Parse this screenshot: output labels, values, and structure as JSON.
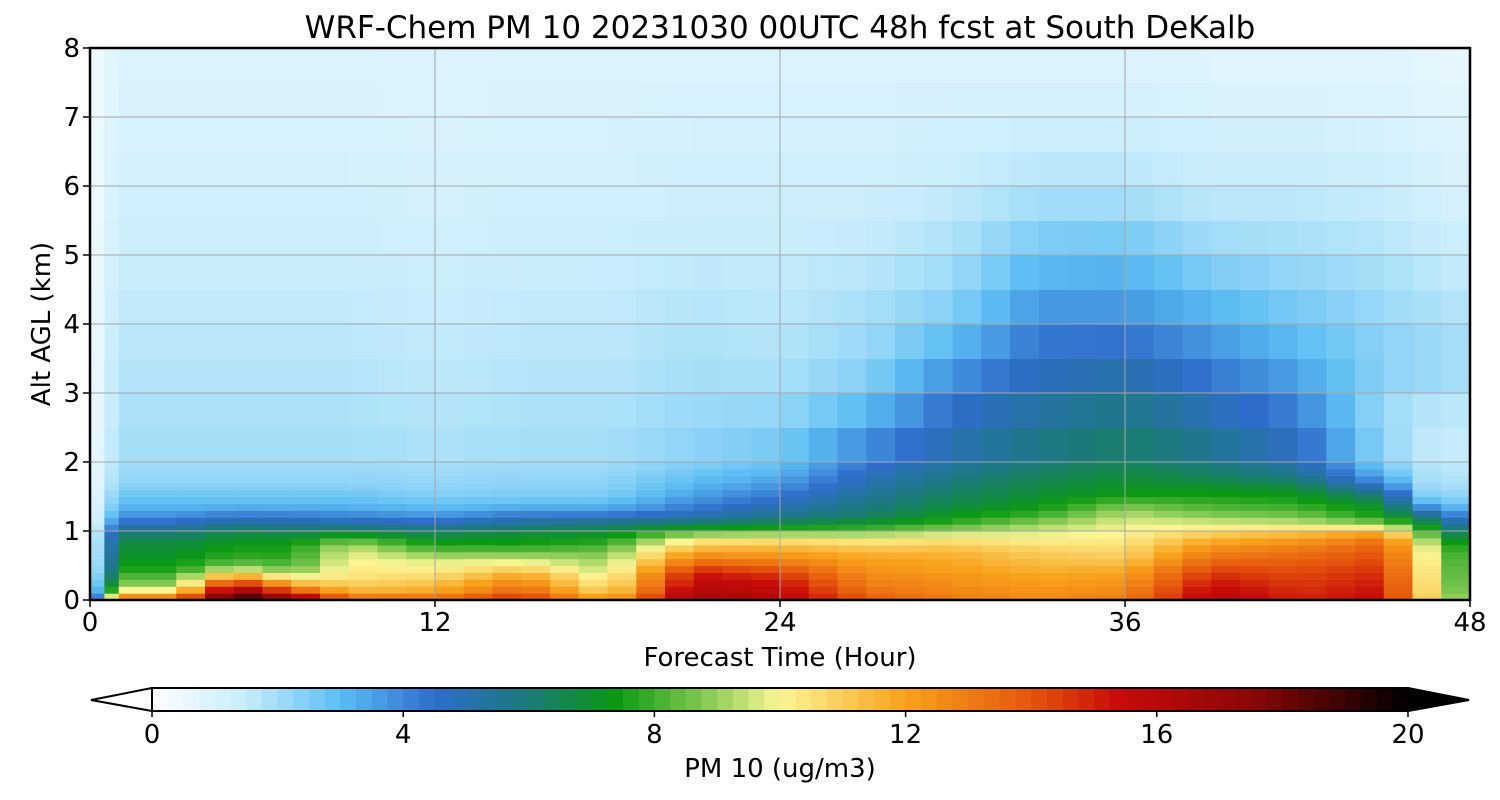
{
  "chart_data": {
    "type": "heatmap",
    "title": "WRF-Chem PM 10  20231030 00UTC 48h fcst at South DeKalb",
    "xlabel": "Forecast Time (Hour)",
    "ylabel": "Alt AGL (km)",
    "xlim": [
      0,
      48
    ],
    "ylim": [
      0,
      8
    ],
    "xticks": [
      0,
      12,
      24,
      36,
      48
    ],
    "yticks": [
      0,
      1,
      2,
      3,
      4,
      5,
      6,
      7,
      8
    ],
    "grid": true,
    "colorbar": {
      "label": "PM 10  (ug/m3)",
      "min": 0,
      "max": 20,
      "ticks": [
        0,
        4,
        8,
        12,
        16,
        20
      ],
      "extend": "both",
      "orientation": "horizontal",
      "placement": "bottom",
      "color_stops": [
        [
          0,
          "#ffffff"
        ],
        [
          1.5,
          "#c6ecfb"
        ],
        [
          3,
          "#5bbdf2"
        ],
        [
          4.5,
          "#2f6dcc"
        ],
        [
          6,
          "#1b7a78"
        ],
        [
          7.4,
          "#0b9a12"
        ],
        [
          9,
          "#96d05e"
        ],
        [
          10,
          "#fcf696"
        ],
        [
          12,
          "#f8a21c"
        ],
        [
          14,
          "#e5560c"
        ],
        [
          15.4,
          "#c80a0a"
        ],
        [
          17.5,
          "#8b0808"
        ],
        [
          20,
          "#000000"
        ]
      ]
    },
    "z_axis_heights_km": [
      0,
      0.1,
      0.2,
      0.3,
      0.4,
      0.5,
      0.6,
      0.7,
      0.8,
      0.9,
      1.0,
      1.1,
      1.2,
      1.3,
      1.4,
      1.5,
      1.6,
      1.7,
      1.8,
      1.9,
      2.0,
      2.5,
      3.0,
      3.5,
      4.0,
      4.5,
      5.0,
      5.5,
      6.0,
      6.5,
      7.0,
      7.5,
      8.0
    ],
    "x_hours": [
      0,
      0.5,
      1,
      2,
      3,
      4,
      5,
      6,
      7,
      8,
      9,
      10,
      11,
      12,
      13,
      14,
      15,
      16,
      17,
      18,
      19,
      20,
      21,
      22,
      23,
      24,
      25,
      26,
      27,
      28,
      29,
      30,
      31,
      32,
      33,
      34,
      35,
      36,
      37,
      38,
      39,
      40,
      41,
      42,
      43,
      44,
      45,
      46,
      47,
      48
    ],
    "profiles": [
      {
        "hour": 0,
        "values": [
          1.5,
          1.0,
          0.8,
          0.6,
          0.5,
          0.4,
          0.3,
          0.3,
          0.3,
          0.3,
          0.3,
          0.3,
          0.3,
          0.3,
          0.3,
          0.3,
          0.3,
          0.3,
          0.3,
          0.3,
          0.3,
          0.3,
          0.3,
          0.3,
          0.3,
          0.3,
          0.3,
          0.3,
          0.3,
          0.3,
          0.3,
          0.3,
          0.3
        ]
      },
      {
        "hour": 1,
        "values": [
          14,
          11,
          9,
          8.5,
          7.8,
          7.4,
          7.2,
          7.0,
          6.8,
          6.5,
          5.8,
          4.8,
          4.0,
          3.4,
          3.0,
          2.8,
          2.5,
          2.3,
          2.2,
          2.1,
          2.0,
          1.9,
          1.8,
          1.7,
          1.6,
          1.5,
          1.4,
          1.3,
          1.2,
          1.1,
          1.0,
          1.0,
          0.9
        ]
      },
      {
        "hour": 3,
        "values": [
          14,
          11,
          9,
          8.5,
          7.8,
          7.4,
          7.2,
          7.0,
          6.8,
          6.5,
          5.8,
          4.8,
          4.0,
          3.4,
          3.0,
          2.8,
          2.5,
          2.3,
          2.2,
          2.1,
          2.0,
          1.9,
          1.8,
          1.7,
          1.6,
          1.5,
          1.4,
          1.3,
          1.2,
          1.1,
          1.0,
          1.0,
          0.9
        ]
      },
      {
        "hour": 5,
        "values": [
          20,
          18,
          16,
          14,
          10.5,
          8.8,
          8.0,
          7.6,
          7.4,
          7.0,
          6.5,
          5.5,
          4.6,
          3.6,
          3.0,
          2.8,
          2.5,
          2.3,
          2.2,
          2.1,
          2.0,
          1.9,
          1.8,
          1.7,
          1.6,
          1.5,
          1.4,
          1.3,
          1.2,
          1.1,
          1.0,
          1.0,
          0.9
        ]
      },
      {
        "hour": 7,
        "values": [
          18,
          15,
          12.5,
          10.5,
          9.0,
          8.2,
          7.8,
          7.6,
          7.4,
          7.0,
          6.4,
          5.3,
          4.4,
          3.6,
          3.0,
          2.8,
          2.5,
          2.3,
          2.2,
          2.1,
          2.0,
          1.9,
          1.8,
          1.7,
          1.6,
          1.5,
          1.4,
          1.3,
          1.2,
          1.1,
          1.0,
          1.0,
          0.9
        ]
      },
      {
        "hour": 9,
        "values": [
          14,
          12,
          11,
          10.6,
          10.3,
          10.2,
          10.0,
          9.8,
          9.2,
          8.0,
          6.6,
          5.3,
          4.3,
          3.5,
          3.0,
          2.8,
          2.5,
          2.3,
          2.2,
          2.1,
          2.0,
          1.9,
          1.8,
          1.7,
          1.6,
          1.5,
          1.4,
          1.3,
          1.2,
          1.1,
          1.0,
          1.0,
          0.9
        ]
      },
      {
        "hour": 12,
        "values": [
          14,
          12,
          11.5,
          11,
          10.3,
          10,
          9.5,
          8.5,
          7.6,
          7.0,
          6.2,
          5.0,
          4.0,
          3.2,
          2.8,
          2.5,
          2.3,
          2.2,
          2.1,
          2.0,
          1.9,
          1.8,
          1.7,
          1.6,
          1.5,
          1.4,
          1.3,
          1.2,
          1.1,
          1.0,
          1.0,
          0.9,
          0.9
        ]
      },
      {
        "hour": 15,
        "values": [
          15,
          14,
          13,
          12.5,
          11.5,
          10.5,
          9.5,
          8.5,
          7.6,
          7.2,
          6.6,
          5.6,
          4.6,
          3.6,
          3.0,
          2.6,
          2.4,
          2.3,
          2.2,
          2.1,
          2.0,
          1.9,
          1.8,
          1.7,
          1.6,
          1.5,
          1.4,
          1.3,
          1.2,
          1.1,
          1.0,
          1.0,
          0.9
        ]
      },
      {
        "hour": 18,
        "values": [
          12,
          11,
          10.2,
          10,
          9.5,
          9.2,
          9.0,
          8.6,
          8.0,
          7.4,
          6.8,
          6.0,
          4.8,
          3.6,
          3.0,
          2.6,
          2.4,
          2.3,
          2.2,
          2.1,
          2.0,
          1.9,
          1.8,
          1.7,
          1.6,
          1.5,
          1.4,
          1.3,
          1.2,
          1.1,
          1.0,
          1.0,
          0.9
        ]
      },
      {
        "hour": 21,
        "values": [
          17,
          16.5,
          16,
          15.6,
          15.2,
          14,
          13,
          12,
          11,
          10,
          8.0,
          6.5,
          5.2,
          4.5,
          4.0,
          3.6,
          3.3,
          3.0,
          2.8,
          2.6,
          2.4,
          2.2,
          2.0,
          1.9,
          1.8,
          1.7,
          1.5,
          1.4,
          1.3,
          1.2,
          1.1,
          1.0,
          0.9
        ]
      },
      {
        "hour": 24,
        "values": [
          16,
          15.8,
          15.5,
          15,
          14.4,
          13.5,
          12.6,
          12,
          11.2,
          10.2,
          8.2,
          6.8,
          5.8,
          5.2,
          4.8,
          4.4,
          4.0,
          3.6,
          3.3,
          3.0,
          2.8,
          2.4,
          2.0,
          1.8,
          1.7,
          1.6,
          1.5,
          1.4,
          1.3,
          1.2,
          1.1,
          1.0,
          0.9
        ]
      },
      {
        "hour": 27,
        "values": [
          14,
          13.5,
          13,
          12.8,
          12.5,
          12.2,
          12,
          11.5,
          10.8,
          10.0,
          8.4,
          7.2,
          6.4,
          6.0,
          5.8,
          5.5,
          5.2,
          5.0,
          4.8,
          4.5,
          4.2,
          3.5,
          2.6,
          2.2,
          2.0,
          1.8,
          1.6,
          1.4,
          1.3,
          1.2,
          1.1,
          1.0,
          0.9
        ]
      },
      {
        "hour": 30,
        "values": [
          13,
          12.8,
          12.6,
          12.4,
          12.2,
          12,
          11.8,
          11.5,
          11.0,
          10.2,
          9.2,
          8.0,
          7.4,
          7.0,
          6.6,
          6.4,
          6.2,
          6.0,
          5.8,
          5.5,
          5.2,
          4.8,
          4.2,
          3.4,
          2.6,
          2.2,
          1.9,
          1.7,
          1.5,
          1.3,
          1.2,
          1.0,
          0.9
        ]
      },
      {
        "hour": 33,
        "values": [
          12.5,
          12.4,
          12.2,
          12,
          11.8,
          11.5,
          11.2,
          11.0,
          10.5,
          10.0,
          9.6,
          9.0,
          8.2,
          7.6,
          7.2,
          7.0,
          6.8,
          6.6,
          6.4,
          6.2,
          6.0,
          5.5,
          5.0,
          4.6,
          4.0,
          3.4,
          2.8,
          2.2,
          1.8,
          1.5,
          1.2,
          1.0,
          0.9
        ]
      },
      {
        "hour": 36,
        "values": [
          13,
          12.8,
          12.5,
          12.2,
          12,
          11.5,
          11.0,
          10.8,
          10.5,
          10.2,
          10.0,
          9.8,
          9.5,
          9.0,
          8.4,
          7.6,
          7.2,
          7.0,
          6.8,
          6.6,
          6.4,
          6.0,
          5.4,
          4.8,
          4.0,
          3.4,
          3.0,
          2.2,
          1.8,
          1.5,
          1.2,
          1.0,
          0.9
        ]
      },
      {
        "hour": 39,
        "values": [
          16,
          15.8,
          15.5,
          15,
          14.6,
          14,
          13.4,
          12.8,
          12.2,
          11.5,
          10.6,
          9.8,
          9.0,
          8.4,
          8.0,
          7.6,
          7.2,
          6.8,
          6.4,
          6.2,
          5.8,
          5.2,
          4.6,
          4.0,
          3.4,
          2.8,
          2.2,
          1.8,
          1.5,
          1.3,
          1.1,
          0.9,
          0.8
        ]
      },
      {
        "hour": 42,
        "values": [
          15,
          14.8,
          14.6,
          14.4,
          14.2,
          14,
          13.6,
          13.2,
          12.6,
          12.0,
          11.0,
          9.6,
          8.8,
          8.2,
          7.8,
          7.4,
          7.0,
          6.4,
          5.8,
          5.4,
          5.0,
          4.4,
          3.8,
          3.2,
          2.8,
          2.4,
          2.0,
          1.8,
          1.5,
          1.3,
          1.1,
          0.9,
          0.8
        ]
      },
      {
        "hour": 45,
        "values": [
          15.5,
          15.4,
          15.2,
          15.0,
          14.8,
          14.5,
          14.2,
          14.0,
          13.6,
          13.0,
          11.5,
          9.0,
          7.6,
          7.2,
          6.8,
          6.0,
          5.0,
          4.0,
          3.2,
          2.8,
          2.4,
          2.0,
          2.2,
          2.4,
          2.2,
          2.0,
          1.8,
          1.6,
          1.4,
          1.2,
          1.0,
          0.9,
          0.8
        ]
      },
      {
        "hour": 46.5,
        "values": [
          11,
          10.8,
          10.6,
          10.5,
          10.4,
          10.3,
          10.2,
          10.0,
          9.6,
          9.0,
          8.0,
          7.0,
          6.0,
          4.6,
          3.2,
          2.6,
          2.2,
          2.0,
          1.9,
          1.8,
          1.7,
          1.5,
          2.0,
          2.2,
          2.0,
          1.8,
          1.6,
          1.4,
          1.2,
          1.0,
          0.9,
          0.8,
          0.7
        ]
      },
      {
        "hour": 48,
        "values": [
          8.0,
          7.8,
          7.6,
          7.5,
          7.4,
          7.3,
          7.2,
          7.0,
          6.6,
          6.0,
          5.4,
          4.6,
          3.8,
          3.0,
          2.6,
          2.2,
          2.0,
          1.8,
          1.7,
          1.6,
          1.5,
          1.4,
          1.8,
          2.0,
          1.8,
          1.6,
          1.4,
          1.2,
          1.0,
          0.9,
          0.8,
          0.7,
          0.6
        ]
      }
    ]
  }
}
